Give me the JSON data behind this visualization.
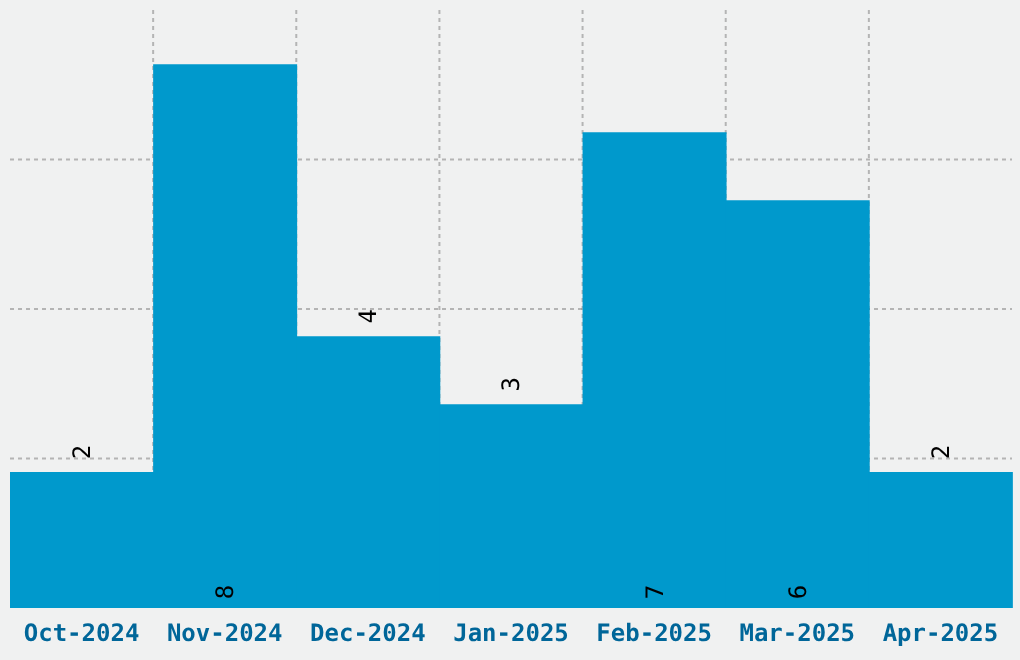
{
  "chart_data": {
    "type": "bar",
    "categories": [
      "Oct-2024",
      "Nov-2024",
      "Dec-2024",
      "Jan-2025",
      "Feb-2025",
      "Mar-2025",
      "Apr-2025"
    ],
    "values": [
      2,
      8,
      4,
      3,
      7,
      6,
      2
    ],
    "color": "#0099cc",
    "ylim": [
      0,
      8.8
    ],
    "tick_labels": "x",
    "grid": true,
    "data_labels": true
  }
}
